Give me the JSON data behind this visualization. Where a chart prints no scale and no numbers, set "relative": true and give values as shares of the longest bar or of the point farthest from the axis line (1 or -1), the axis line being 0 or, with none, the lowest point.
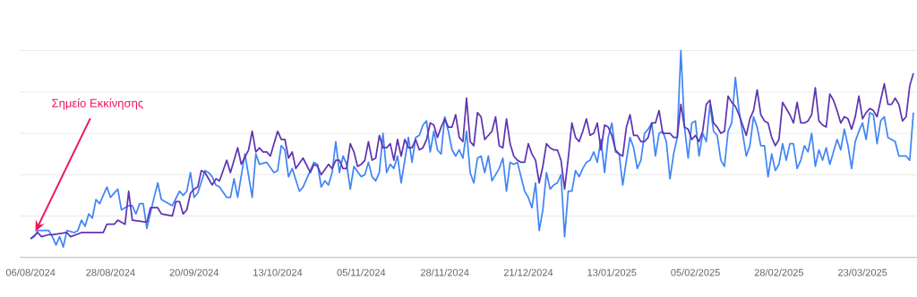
{
  "chart_data": {
    "type": "line",
    "relative": true,
    "grid": "y",
    "xlim": [
      "2024-08-03",
      "2025-04-07"
    ],
    "xticks": [
      {
        "value": "2024-08-06",
        "label": "06/08/2024"
      },
      {
        "value": "2024-08-28",
        "label": "28/08/2024"
      },
      {
        "value": "2024-09-20",
        "label": "20/09/2024"
      },
      {
        "value": "2024-10-13",
        "label": "13/10/2024"
      },
      {
        "value": "2024-11-05",
        "label": "05/11/2024"
      },
      {
        "value": "2024-11-28",
        "label": "28/11/2024"
      },
      {
        "value": "2024-12-21",
        "label": "21/12/2024"
      },
      {
        "value": "2025-01-13",
        "label": "13/01/2025"
      },
      {
        "value": "2025-02-05",
        "label": "05/02/2025"
      },
      {
        "value": "2025-02-28",
        "label": "28/02/2025"
      },
      {
        "value": "2025-03-23",
        "label": "23/03/2025"
      }
    ],
    "annotations": [
      "Σημείο Εκκίνησης"
    ],
    "series": [
      {
        "color": "#4285f4",
        "x": [
          "2024-08-06",
          "2024-08-07",
          "2024-08-08",
          "2024-08-10",
          "2024-08-11",
          "2024-08-12",
          "2024-08-13",
          "2024-08-14",
          "2024-08-15",
          "2024-08-16",
          "2024-08-18",
          "2024-08-19",
          "2024-08-20",
          "2024-08-21",
          "2024-08-22",
          "2024-08-23",
          "2024-08-24",
          "2024-08-25",
          "2024-08-27",
          "2024-08-28",
          "2024-08-30",
          "2024-08-31",
          "2024-09-02",
          "2024-09-03",
          "2024-09-04",
          "2024-09-05",
          "2024-09-06",
          "2024-09-07",
          "2024-09-09",
          "2024-09-10",
          "2024-09-11",
          "2024-09-13",
          "2024-09-14",
          "2024-09-16",
          "2024-09-17",
          "2024-09-18",
          "2024-09-19",
          "2024-09-20",
          "2024-09-21",
          "2024-09-23",
          "2024-09-24",
          "2024-09-25",
          "2024-09-26",
          "2024-09-27",
          "2024-09-29",
          "2024-09-30",
          "2024-10-01",
          "2024-10-02",
          "2024-10-04",
          "2024-10-06",
          "2024-10-07",
          "2024-10-08",
          "2024-10-10",
          "2024-10-12",
          "2024-10-13",
          "2024-10-14",
          "2024-10-15",
          "2024-10-16",
          "2024-10-17",
          "2024-10-19",
          "2024-10-20",
          "2024-10-23",
          "2024-10-24",
          "2024-10-25",
          "2024-10-26",
          "2024-10-27",
          "2024-10-28",
          "2024-10-29",
          "2024-10-30",
          "2024-10-31",
          "2024-11-01",
          "2024-11-02",
          "2024-11-03",
          "2024-11-05",
          "2024-11-06",
          "2024-11-07",
          "2024-11-08",
          "2024-11-09",
          "2024-11-10",
          "2024-11-11",
          "2024-11-12",
          "2024-11-13",
          "2024-11-14",
          "2024-11-15",
          "2024-11-16",
          "2024-11-18",
          "2024-11-19",
          "2024-11-20",
          "2024-11-21",
          "2024-11-22",
          "2024-11-23",
          "2024-11-24",
          "2024-11-25",
          "2024-11-26",
          "2024-11-27",
          "2024-11-28",
          "2024-11-29",
          "2024-11-30",
          "2024-12-01",
          "2024-12-02",
          "2024-12-03",
          "2024-12-04",
          "2024-12-05",
          "2024-12-06",
          "2024-12-07",
          "2024-12-08",
          "2024-12-09",
          "2024-12-10",
          "2024-12-11",
          "2024-12-12",
          "2024-12-13",
          "2024-12-14",
          "2024-12-15",
          "2024-12-16",
          "2024-12-17",
          "2024-12-18",
          "2024-12-19",
          "2024-12-20",
          "2024-12-21",
          "2024-12-22",
          "2024-12-23",
          "2024-12-24",
          "2024-12-25",
          "2024-12-26",
          "2024-12-27",
          "2024-12-28",
          "2024-12-29",
          "2024-12-30",
          "2024-12-31",
          "2025-01-01",
          "2025-01-02",
          "2025-01-03",
          "2025-01-04",
          "2025-01-05",
          "2025-01-06",
          "2025-01-07",
          "2025-01-08",
          "2025-01-09",
          "2025-01-10",
          "2025-01-11",
          "2025-01-12",
          "2025-01-13",
          "2025-01-14",
          "2025-01-15",
          "2025-01-16",
          "2025-01-17",
          "2025-01-18",
          "2025-01-19",
          "2025-01-20",
          "2025-01-21",
          "2025-01-22",
          "2025-01-23",
          "2025-01-24",
          "2025-01-25",
          "2025-01-26",
          "2025-01-27",
          "2025-01-28",
          "2025-01-29",
          "2025-01-30",
          "2025-01-31",
          "2025-02-01",
          "2025-02-02",
          "2025-02-03",
          "2025-02-04",
          "2025-02-05",
          "2025-02-06",
          "2025-02-07",
          "2025-02-08",
          "2025-02-09",
          "2025-02-10",
          "2025-02-11",
          "2025-02-12",
          "2025-02-13",
          "2025-02-14",
          "2025-02-15",
          "2025-02-16",
          "2025-02-17",
          "2025-02-18",
          "2025-02-19",
          "2025-02-20",
          "2025-02-21",
          "2025-02-22",
          "2025-02-23",
          "2025-02-24",
          "2025-02-25",
          "2025-02-26",
          "2025-02-27",
          "2025-02-28",
          "2025-03-01",
          "2025-03-02",
          "2025-03-03",
          "2025-03-04",
          "2025-03-05",
          "2025-03-06",
          "2025-03-07",
          "2025-03-08",
          "2025-03-09",
          "2025-03-10",
          "2025-03-11",
          "2025-03-12",
          "2025-03-13",
          "2025-03-14",
          "2025-03-15",
          "2025-03-16",
          "2025-03-17",
          "2025-03-18",
          "2025-03-19",
          "2025-03-20",
          "2025-03-21",
          "2025-03-22",
          "2025-03-23",
          "2025-03-24",
          "2025-03-25",
          "2025-03-26",
          "2025-03-27",
          "2025-03-28",
          "2025-03-29",
          "2025-03-30",
          "2025-03-31",
          "2025-04-01",
          "2025-04-02",
          "2025-04-04",
          "2025-04-05",
          "2025-04-06"
        ],
        "values": [
          0.09,
          0.1,
          0.13,
          0.13,
          0.13,
          0.1,
          0.06,
          0.1,
          0.05,
          0.13,
          0.12,
          0.13,
          0.18,
          0.15,
          0.21,
          0.19,
          0.28,
          0.26,
          0.34,
          0.29,
          0.33,
          0.23,
          0.25,
          0.25,
          0.21,
          0.26,
          0.26,
          0.14,
          0.29,
          0.36,
          0.28,
          0.26,
          0.25,
          0.32,
          0.3,
          0.32,
          0.41,
          0.29,
          0.31,
          0.42,
          0.41,
          0.39,
          0.35,
          0.34,
          0.29,
          0.29,
          0.38,
          0.29,
          0.5,
          0.29,
          0.5,
          0.45,
          0.46,
          0.41,
          0.42,
          0.54,
          0.52,
          0.39,
          0.43,
          0.32,
          0.34,
          0.46,
          0.45,
          0.34,
          0.37,
          0.35,
          0.41,
          0.56,
          0.41,
          0.49,
          0.45,
          0.33,
          0.44,
          0.39,
          0.4,
          0.46,
          0.39,
          0.37,
          0.41,
          0.6,
          0.41,
          0.45,
          0.43,
          0.49,
          0.36,
          0.58,
          0.46,
          0.58,
          0.59,
          0.64,
          0.66,
          0.51,
          0.61,
          0.52,
          0.5,
          0.68,
          0.61,
          0.52,
          0.49,
          0.52,
          0.48,
          0.61,
          0.41,
          0.36,
          0.48,
          0.49,
          0.41,
          0.49,
          0.37,
          0.4,
          0.43,
          0.48,
          0.32,
          0.46,
          0.45,
          0.46,
          0.39,
          0.32,
          0.29,
          0.24,
          0.36,
          0.13,
          0.23,
          0.41,
          0.33,
          0.35,
          0.36,
          0.4,
          0.1,
          0.32,
          0.32,
          0.42,
          0.39,
          0.43,
          0.46,
          0.47,
          0.51,
          0.46,
          0.57,
          0.41,
          0.58,
          0.65,
          0.51,
          0.5,
          0.35,
          0.47,
          0.58,
          0.53,
          0.43,
          0.47,
          0.6,
          0.62,
          0.65,
          0.49,
          0.6,
          0.61,
          0.56,
          0.38,
          0.5,
          0.58,
          1.0,
          0.63,
          0.48,
          0.65,
          0.66,
          0.49,
          0.6,
          0.56,
          0.74,
          0.61,
          0.59,
          0.47,
          0.44,
          0.61,
          0.65,
          0.87,
          0.71,
          0.6,
          0.49,
          0.54,
          0.68,
          0.63,
          0.54,
          0.54,
          0.39,
          0.5,
          0.42,
          0.45,
          0.55,
          0.47,
          0.55,
          0.55,
          0.43,
          0.47,
          0.54,
          0.51,
          0.6,
          0.44,
          0.52,
          0.47,
          0.53,
          0.45,
          0.51,
          0.57,
          0.52,
          0.62,
          0.54,
          0.43,
          0.56,
          0.61,
          0.65,
          0.57,
          0.7,
          0.69,
          0.55,
          0.66,
          0.68,
          0.58,
          0.57,
          0.56,
          0.49,
          0.49,
          0.47,
          0.7
        ]
      },
      {
        "color": "#5e35b1",
        "x": [
          "2024-08-06",
          "2024-08-08",
          "2024-08-09",
          "2024-08-11",
          "2024-08-12",
          "2024-08-16",
          "2024-08-17",
          "2024-08-20",
          "2024-08-23",
          "2024-08-26",
          "2024-08-27",
          "2024-08-29",
          "2024-08-30",
          "2024-09-01",
          "2024-09-02",
          "2024-09-03",
          "2024-09-07",
          "2024-09-08",
          "2024-09-10",
          "2024-09-11",
          "2024-09-14",
          "2024-09-15",
          "2024-09-16",
          "2024-09-17",
          "2024-09-18",
          "2024-09-19",
          "2024-09-20",
          "2024-09-21",
          "2024-09-22",
          "2024-09-23",
          "2024-09-25",
          "2024-09-26",
          "2024-09-27",
          "2024-09-29",
          "2024-09-30",
          "2024-10-02",
          "2024-10-03",
          "2024-10-05",
          "2024-10-06",
          "2024-10-07",
          "2024-10-08",
          "2024-10-09",
          "2024-10-10",
          "2024-10-11",
          "2024-10-13",
          "2024-10-14",
          "2024-10-15",
          "2024-10-16",
          "2024-10-17",
          "2024-10-18",
          "2024-10-20",
          "2024-10-22",
          "2024-10-23",
          "2024-10-24",
          "2024-10-25",
          "2024-10-27",
          "2024-10-28",
          "2024-10-29",
          "2024-10-30",
          "2024-10-31",
          "2024-11-01",
          "2024-11-02",
          "2024-11-03",
          "2024-11-04",
          "2024-11-05",
          "2024-11-06",
          "2024-11-07",
          "2024-11-08",
          "2024-11-09",
          "2024-11-10",
          "2024-11-11",
          "2024-11-12",
          "2024-11-13",
          "2024-11-14",
          "2024-11-15",
          "2024-11-16",
          "2024-11-17",
          "2024-11-18",
          "2024-11-19",
          "2024-11-20",
          "2024-11-21",
          "2024-11-22",
          "2024-11-23",
          "2024-11-24",
          "2024-11-25",
          "2024-11-26",
          "2024-11-27",
          "2024-11-28",
          "2024-11-29",
          "2024-11-30",
          "2024-12-01",
          "2024-12-02",
          "2024-12-03",
          "2024-12-04",
          "2024-12-05",
          "2024-12-06",
          "2024-12-07",
          "2024-12-08",
          "2024-12-09",
          "2024-12-10",
          "2024-12-11",
          "2024-12-12",
          "2024-12-13",
          "2024-12-14",
          "2024-12-15",
          "2024-12-16",
          "2024-12-17",
          "2024-12-18",
          "2024-12-19",
          "2024-12-20",
          "2024-12-21",
          "2024-12-22",
          "2024-12-23",
          "2024-12-24",
          "2024-12-25",
          "2024-12-26",
          "2024-12-27",
          "2024-12-28",
          "2024-12-29",
          "2024-12-30",
          "2024-12-31",
          "2025-01-01",
          "2025-01-02",
          "2025-01-03",
          "2025-01-04",
          "2025-01-05",
          "2025-01-06",
          "2025-01-07",
          "2025-01-08",
          "2025-01-09",
          "2025-01-10",
          "2025-01-11",
          "2025-01-12",
          "2025-01-13",
          "2025-01-14",
          "2025-01-15",
          "2025-01-16",
          "2025-01-17",
          "2025-01-18",
          "2025-01-19",
          "2025-01-20",
          "2025-01-21",
          "2025-01-22",
          "2025-01-23",
          "2025-01-24",
          "2025-01-25",
          "2025-01-26",
          "2025-01-27",
          "2025-01-28",
          "2025-01-29",
          "2025-01-30",
          "2025-01-31",
          "2025-02-01",
          "2025-02-02",
          "2025-02-03",
          "2025-02-04",
          "2025-02-05",
          "2025-02-06",
          "2025-02-07",
          "2025-02-08",
          "2025-02-09",
          "2025-02-10",
          "2025-02-11",
          "2025-02-12",
          "2025-02-13",
          "2025-02-14",
          "2025-02-15",
          "2025-02-16",
          "2025-02-17",
          "2025-02-18",
          "2025-02-19",
          "2025-02-20",
          "2025-02-21",
          "2025-02-22",
          "2025-02-23",
          "2025-02-24",
          "2025-02-25",
          "2025-02-26",
          "2025-02-27",
          "2025-02-28",
          "2025-03-01",
          "2025-03-02",
          "2025-03-03",
          "2025-03-04",
          "2025-03-05",
          "2025-03-06",
          "2025-03-07",
          "2025-03-08",
          "2025-03-09",
          "2025-03-10",
          "2025-03-11",
          "2025-03-12",
          "2025-03-13",
          "2025-03-14",
          "2025-03-15",
          "2025-03-16",
          "2025-03-17",
          "2025-03-18",
          "2025-03-19",
          "2025-03-20",
          "2025-03-21",
          "2025-03-22",
          "2025-03-23",
          "2025-03-24",
          "2025-03-25",
          "2025-03-26",
          "2025-03-27",
          "2025-03-28",
          "2025-03-29",
          "2025-03-30",
          "2025-03-31",
          "2025-04-01",
          "2025-04-02",
          "2025-04-03",
          "2025-04-04",
          "2025-04-05",
          "2025-04-06"
        ],
        "values": [
          0.09,
          0.12,
          0.1,
          0.11,
          0.11,
          0.12,
          0.1,
          0.12,
          0.12,
          0.12,
          0.16,
          0.16,
          0.18,
          0.16,
          0.32,
          0.18,
          0.17,
          0.24,
          0.24,
          0.21,
          0.2,
          0.27,
          0.27,
          0.21,
          0.23,
          0.31,
          0.33,
          0.34,
          0.42,
          0.41,
          0.35,
          0.38,
          0.37,
          0.47,
          0.41,
          0.53,
          0.45,
          0.52,
          0.61,
          0.51,
          0.53,
          0.51,
          0.51,
          0.49,
          0.61,
          0.57,
          0.57,
          0.48,
          0.51,
          0.43,
          0.48,
          0.41,
          0.45,
          0.44,
          0.4,
          0.45,
          0.43,
          0.47,
          0.47,
          0.43,
          0.43,
          0.55,
          0.51,
          0.44,
          0.45,
          0.47,
          0.56,
          0.47,
          0.48,
          0.59,
          0.53,
          0.53,
          0.55,
          0.47,
          0.57,
          0.49,
          0.57,
          0.53,
          0.53,
          0.57,
          0.52,
          0.53,
          0.57,
          0.65,
          0.64,
          0.58,
          0.63,
          0.67,
          0.63,
          0.63,
          0.69,
          0.58,
          0.56,
          0.77,
          0.56,
          0.54,
          0.7,
          0.68,
          0.57,
          0.59,
          0.61,
          0.68,
          0.54,
          0.53,
          0.67,
          0.55,
          0.49,
          0.47,
          0.46,
          0.46,
          0.55,
          0.5,
          0.47,
          0.36,
          0.44,
          0.55,
          0.53,
          0.52,
          0.52,
          0.47,
          0.33,
          0.48,
          0.65,
          0.58,
          0.56,
          0.61,
          0.67,
          0.59,
          0.6,
          0.65,
          0.52,
          0.64,
          0.63,
          0.59,
          0.52,
          0.5,
          0.49,
          0.63,
          0.69,
          0.59,
          0.59,
          0.56,
          0.56,
          0.58,
          0.65,
          0.65,
          0.71,
          0.6,
          0.6,
          0.6,
          0.58,
          0.58,
          0.74,
          0.63,
          0.62,
          0.57,
          0.59,
          0.56,
          0.61,
          0.74,
          0.76,
          0.65,
          0.63,
          0.6,
          0.61,
          0.78,
          0.75,
          0.73,
          0.69,
          0.64,
          0.59,
          0.67,
          0.71,
          0.81,
          0.69,
          0.66,
          0.65,
          0.58,
          0.54,
          0.57,
          0.75,
          0.72,
          0.69,
          0.65,
          0.75,
          0.65,
          0.65,
          0.66,
          0.69,
          0.82,
          0.66,
          0.64,
          0.63,
          0.79,
          0.76,
          0.71,
          0.65,
          0.68,
          0.67,
          0.62,
          0.68,
          0.78,
          0.67,
          0.7,
          0.72,
          0.71,
          0.68,
          0.76,
          0.84,
          0.74,
          0.74,
          0.77,
          0.74,
          0.66,
          0.68,
          0.83,
          0.89
        ]
      }
    ]
  }
}
